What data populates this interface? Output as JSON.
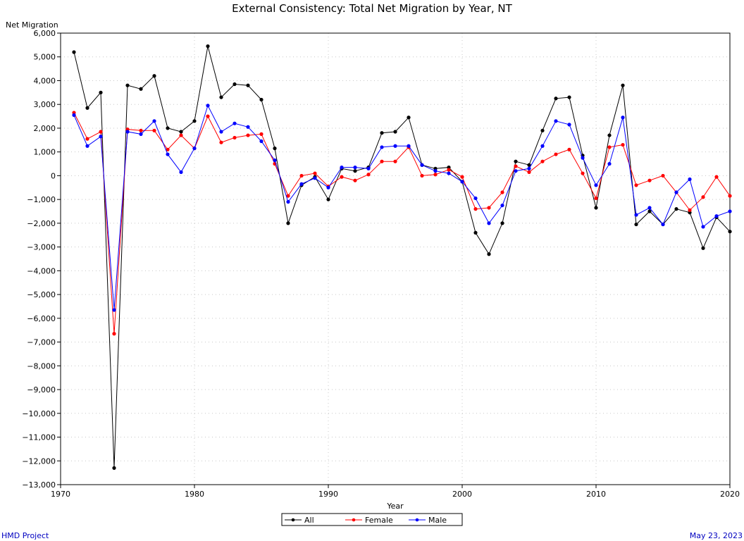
{
  "footer": {
    "left": "HMD Project",
    "right": "May 23, 2023"
  },
  "chart_data": {
    "type": "line",
    "title": "External Consistency: Total Net Migration by Year, NT",
    "xlabel": "Year",
    "ylabel": "Net Migration",
    "xlim": [
      1970,
      2020
    ],
    "ylim": [
      -13000,
      6000
    ],
    "xticks": [
      1970,
      1980,
      1990,
      2000,
      2010,
      2020
    ],
    "yticks": [
      6000,
      5000,
      4000,
      3000,
      2000,
      1000,
      0,
      -1000,
      -2000,
      -3000,
      -4000,
      -5000,
      -6000,
      -7000,
      -8000,
      -9000,
      -10000,
      -11000,
      -12000,
      -13000
    ],
    "ytick_labels": [
      "6,000",
      "5,000",
      "4,000",
      "3,000",
      "2,000",
      "1,000",
      "0",
      "−1,000",
      "−2,000",
      "−3,000",
      "−4,000",
      "−5,000",
      "−6,000",
      "−7,000",
      "−8,000",
      "−9,000",
      "−10,000",
      "−11,000",
      "−12,000",
      "−13,000"
    ],
    "grid": true,
    "legend_position": "bottom-center",
    "x": [
      1971,
      1972,
      1973,
      1974,
      1975,
      1976,
      1977,
      1978,
      1979,
      1980,
      1981,
      1982,
      1983,
      1984,
      1985,
      1986,
      1987,
      1988,
      1989,
      1990,
      1991,
      1992,
      1993,
      1994,
      1995,
      1996,
      1997,
      1998,
      1999,
      2000,
      2001,
      2002,
      2003,
      2004,
      2005,
      2006,
      2007,
      2008,
      2009,
      2010,
      2011,
      2012,
      2013,
      2014,
      2015,
      2016,
      2017,
      2018,
      2019,
      2020
    ],
    "series": [
      {
        "name": "All",
        "color": "#000000",
        "values": [
          5200,
          2850,
          3500,
          -12300,
          3800,
          3650,
          4200,
          2000,
          1850,
          2300,
          5450,
          3300,
          3850,
          3800,
          3200,
          1150,
          -2000,
          -400,
          -50,
          -1000,
          300,
          200,
          350,
          1800,
          1850,
          2450,
          450,
          300,
          350,
          -250,
          -2400,
          -3300,
          -2000,
          600,
          450,
          1900,
          3250,
          3300,
          850,
          -1350,
          1700,
          3800,
          -2050,
          -1500,
          -2050,
          -1400,
          -1550,
          -3050,
          -1750,
          -2350
        ]
      },
      {
        "name": "Female",
        "color": "#ff0000",
        "values": [
          2650,
          1550,
          1850,
          -6650,
          1950,
          1900,
          1900,
          1100,
          1700,
          1150,
          2500,
          1400,
          1600,
          1700,
          1750,
          500,
          -850,
          0,
          100,
          -450,
          -50,
          -200,
          50,
          600,
          600,
          1200,
          0,
          50,
          250,
          -50,
          -1400,
          -1350,
          -700,
          400,
          150,
          600,
          900,
          1100,
          100,
          -950,
          1200,
          1300,
          -400,
          -200,
          0,
          -700,
          -1450,
          -900,
          -50,
          -850
        ]
      },
      {
        "name": "Male",
        "color": "#0000ff",
        "values": [
          2550,
          1250,
          1650,
          -5650,
          1850,
          1750,
          2300,
          900,
          150,
          1150,
          2950,
          1850,
          2200,
          2050,
          1450,
          650,
          -1100,
          -350,
          -100,
          -500,
          350,
          350,
          300,
          1200,
          1250,
          1250,
          450,
          200,
          100,
          -250,
          -950,
          -2000,
          -1250,
          200,
          300,
          1250,
          2300,
          2150,
          750,
          -400,
          500,
          2450,
          -1650,
          -1350,
          -2050,
          -700,
          -150,
          -2150,
          -1700,
          -1500
        ]
      }
    ]
  }
}
